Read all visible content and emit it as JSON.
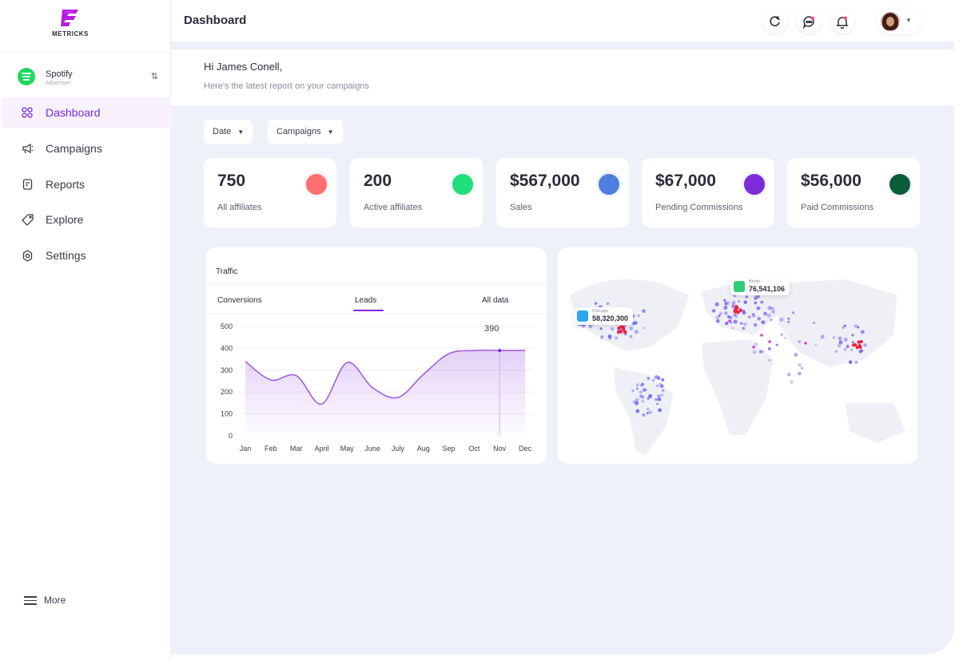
{
  "brand": {
    "name": "METRICKS",
    "logo_color": "#b61de3"
  },
  "account": {
    "name": "Spotify",
    "subtitle": "Advertiser",
    "switch_icon": "swap-vertical-icon"
  },
  "sidebar": {
    "items": [
      {
        "label": "Dashboard",
        "icon": "grid-icon",
        "active": true
      },
      {
        "label": "Campaigns",
        "icon": "megaphone-icon",
        "active": false
      },
      {
        "label": "Reports",
        "icon": "document-icon",
        "active": false
      },
      {
        "label": "Explore",
        "icon": "tag-icon",
        "active": false
      },
      {
        "label": "Settings",
        "icon": "gear-icon",
        "active": false
      }
    ],
    "more_label": "More"
  },
  "header": {
    "title": "Dashboard",
    "icons": [
      "refresh-icon",
      "chat-icon",
      "bell-icon"
    ]
  },
  "greeting": {
    "title": "Hi James Conell,",
    "subtitle": "Here's the latest report on your campaigns"
  },
  "filters": [
    {
      "label": "Date"
    },
    {
      "label": "Campaigns"
    }
  ],
  "stats": [
    {
      "value": "750",
      "label": "All affiliates",
      "color": "#ff6f6f"
    },
    {
      "value": "200",
      "label": "Active affiliates",
      "color": "#1fe07a"
    },
    {
      "value": "$567,000",
      "label": "Sales",
      "color": "#4d7fe0"
    },
    {
      "value": "$67,000",
      "label": "Pending Commissions",
      "color": "#7d2ad8"
    },
    {
      "value": "$56,000",
      "label": "Paid Commissions",
      "color": "#0c5e3a"
    }
  ],
  "traffic": {
    "title": "Traffic",
    "tabs": [
      "Conversions",
      "Leads",
      "All data"
    ],
    "active_tab": "Leads"
  },
  "chart_data": {
    "type": "area",
    "categories": [
      "Jan",
      "Feb",
      "Mar",
      "April",
      "May",
      "June",
      "July",
      "Aug",
      "Sep",
      "Oct",
      "Nov",
      "Dec"
    ],
    "values": [
      340,
      255,
      275,
      145,
      335,
      220,
      175,
      280,
      375,
      390,
      390,
      390
    ],
    "yticks": [
      0,
      100,
      200,
      300,
      400,
      500
    ],
    "ylim": [
      0,
      500
    ],
    "highlight": {
      "category": "Nov",
      "value": "390"
    },
    "color": "#a35ddf"
  },
  "map": {
    "markers": [
      {
        "city": "Chicago",
        "value": "58,320,300",
        "color": "#2fa6f0"
      },
      {
        "city": "Berlin",
        "value": "76,541,106",
        "color": "#2fcf77"
      }
    ]
  }
}
